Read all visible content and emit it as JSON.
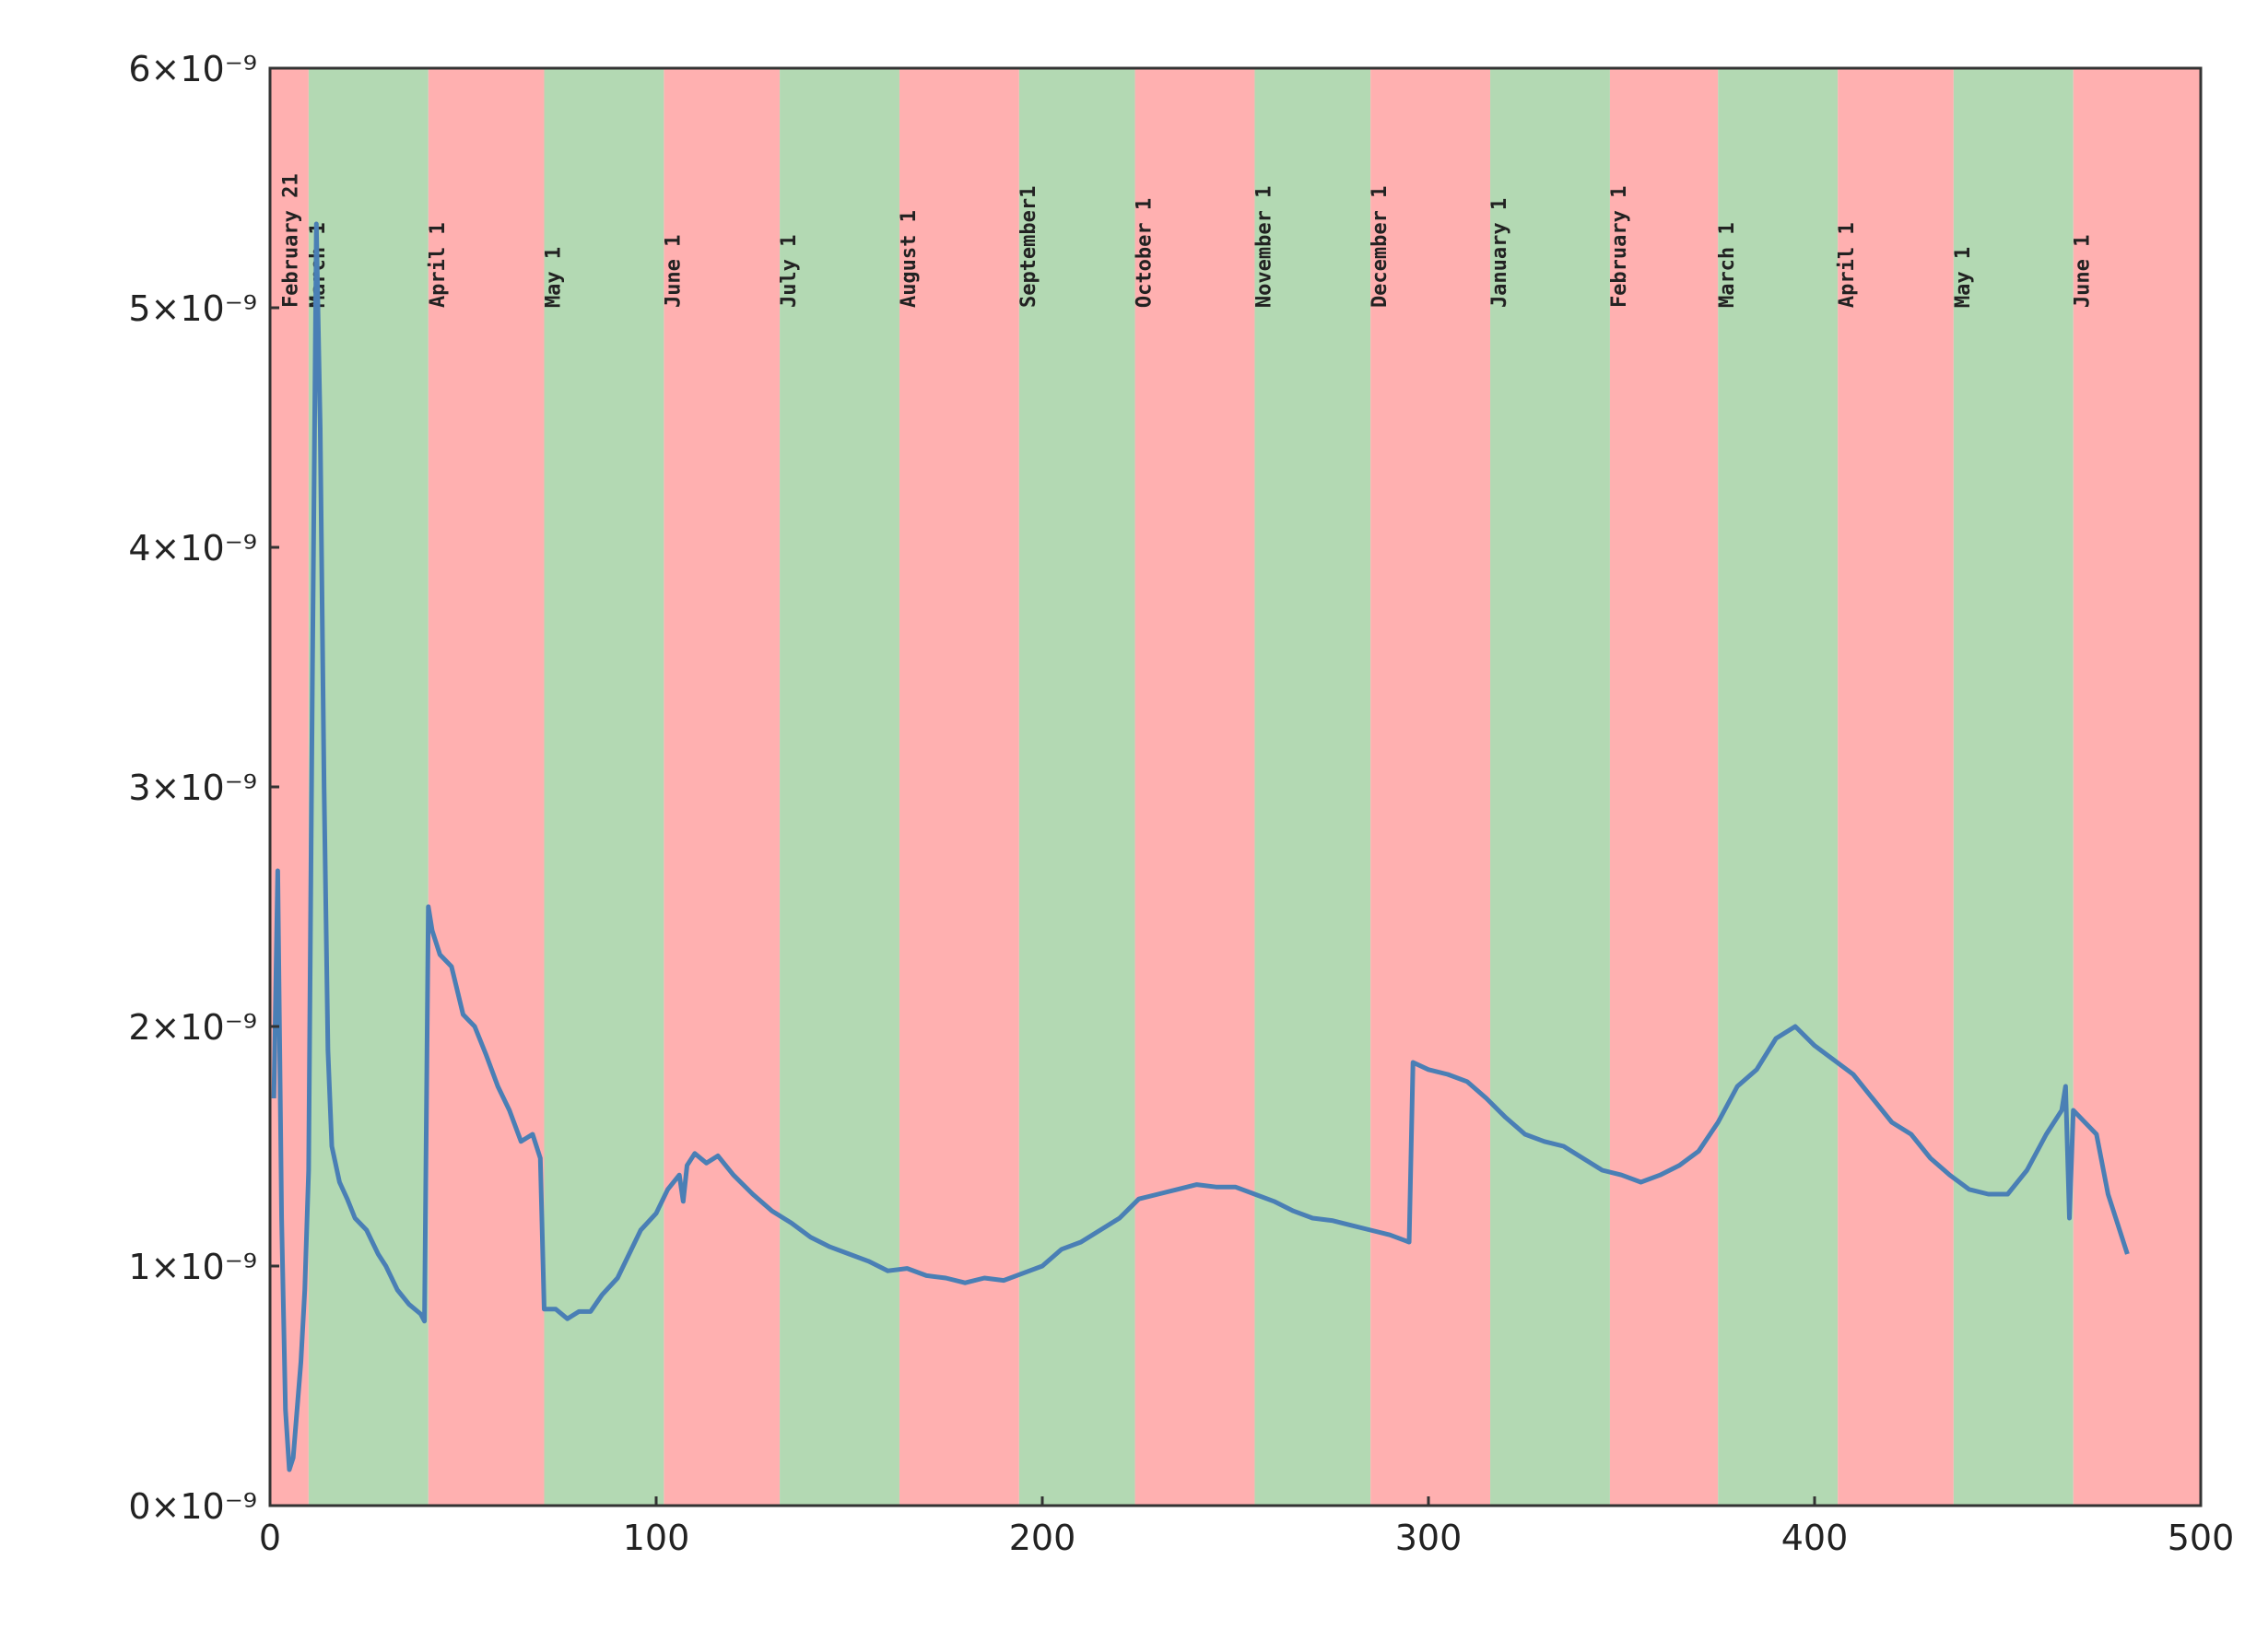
{
  "chart_data": {
    "type": "line",
    "xlim": [
      0,
      500
    ],
    "xticks": [
      0,
      100,
      200,
      300,
      400,
      500
    ],
    "ylim": [
      0,
      6e-09
    ],
    "yticks": [
      {
        "value": 0,
        "label": "0×10⁻⁹"
      },
      {
        "value": 1e-09,
        "label": "1×10⁻⁹"
      },
      {
        "value": 2e-09,
        "label": "2×10⁻⁹"
      },
      {
        "value": 3e-09,
        "label": "3×10⁻⁹"
      },
      {
        "value": 4e-09,
        "label": "4×10⁻⁹"
      },
      {
        "value": 5e-09,
        "label": "5×10⁻⁹"
      },
      {
        "value": 6e-09,
        "label": "6×10⁻⁹"
      }
    ],
    "spans": [
      {
        "start": 0,
        "end": 10,
        "color": "#ffb0b0"
      },
      {
        "start": 10,
        "end": 41,
        "color": "#b3d9b3"
      },
      {
        "start": 41,
        "end": 71,
        "color": "#ffb0b0"
      },
      {
        "start": 71,
        "end": 102,
        "color": "#b3d9b3"
      },
      {
        "start": 102,
        "end": 132,
        "color": "#ffb0b0"
      },
      {
        "start": 132,
        "end": 163,
        "color": "#b3d9b3"
      },
      {
        "start": 163,
        "end": 194,
        "color": "#ffb0b0"
      },
      {
        "start": 194,
        "end": 224,
        "color": "#b3d9b3"
      },
      {
        "start": 224,
        "end": 255,
        "color": "#ffb0b0"
      },
      {
        "start": 255,
        "end": 285,
        "color": "#b3d9b3"
      },
      {
        "start": 285,
        "end": 316,
        "color": "#ffb0b0"
      },
      {
        "start": 316,
        "end": 347,
        "color": "#b3d9b3"
      },
      {
        "start": 347,
        "end": 375,
        "color": "#ffb0b0"
      },
      {
        "start": 375,
        "end": 406,
        "color": "#b3d9b3"
      },
      {
        "start": 406,
        "end": 436,
        "color": "#ffb0b0"
      },
      {
        "start": 436,
        "end": 467,
        "color": "#b3d9b3"
      },
      {
        "start": 467,
        "end": 500,
        "color": "#ffb0b0"
      }
    ],
    "annotations": [
      {
        "x": 3,
        "text": "February 21"
      },
      {
        "x": 10,
        "text": "March 1"
      },
      {
        "x": 41,
        "text": "April 1"
      },
      {
        "x": 71,
        "text": "May 1"
      },
      {
        "x": 102,
        "text": "June 1"
      },
      {
        "x": 132,
        "text": "July 1"
      },
      {
        "x": 163,
        "text": "August 1"
      },
      {
        "x": 194,
        "text": "September1"
      },
      {
        "x": 224,
        "text": "October 1"
      },
      {
        "x": 255,
        "text": "November 1"
      },
      {
        "x": 285,
        "text": "December 1"
      },
      {
        "x": 316,
        "text": "January 1"
      },
      {
        "x": 347,
        "text": "February 1"
      },
      {
        "x": 375,
        "text": "March 1"
      },
      {
        "x": 406,
        "text": "April 1"
      },
      {
        "x": 436,
        "text": "May 1"
      },
      {
        "x": 467,
        "text": "June 1"
      }
    ],
    "series": [
      {
        "color": "#4a7fb5",
        "x": [
          1,
          2,
          3,
          4,
          5,
          6,
          7,
          8,
          9,
          10,
          11,
          12,
          13,
          14,
          15,
          16,
          18,
          20,
          22,
          25,
          28,
          30,
          33,
          36,
          39,
          40,
          41,
          42,
          44,
          47,
          50,
          53,
          56,
          59,
          62,
          65,
          68,
          70,
          71,
          74,
          77,
          80,
          83,
          86,
          90,
          93,
          96,
          100,
          103,
          106,
          107,
          108,
          110,
          113,
          116,
          120,
          125,
          130,
          135,
          140,
          145,
          150,
          155,
          160,
          165,
          170,
          175,
          180,
          185,
          190,
          195,
          200,
          205,
          210,
          215,
          220,
          225,
          230,
          235,
          240,
          245,
          250,
          255,
          260,
          265,
          270,
          275,
          280,
          285,
          290,
          295,
          296,
          300,
          305,
          310,
          315,
          320,
          325,
          330,
          335,
          340,
          345,
          350,
          355,
          360,
          365,
          370,
          375,
          380,
          385,
          390,
          395,
          400,
          405,
          410,
          415,
          420,
          425,
          430,
          435,
          440,
          445,
          450,
          455,
          460,
          464,
          465,
          466,
          467,
          470,
          473,
          476,
          478,
          481
        ],
        "values": [
          1.7e-09,
          2.65e-09,
          1.2e-09,
          4e-10,
          1.5e-10,
          2e-10,
          4e-10,
          6e-10,
          9e-10,
          1.4e-09,
          3.5e-09,
          5.35e-09,
          4.5e-09,
          3e-09,
          1.9e-09,
          1.5e-09,
          1.35e-09,
          1.28e-09,
          1.2e-09,
          1.15e-09,
          1.05e-09,
          1e-09,
          9e-10,
          8.4e-10,
          8e-10,
          7.7e-10,
          2.5e-09,
          2.4e-09,
          2.3e-09,
          2.25e-09,
          2.05e-09,
          2e-09,
          1.88e-09,
          1.75e-09,
          1.65e-09,
          1.52e-09,
          1.55e-09,
          1.45e-09,
          8.2e-10,
          8.2e-10,
          7.8e-10,
          8.1e-10,
          8.1e-10,
          8.8e-10,
          9.5e-10,
          1.05e-09,
          1.15e-09,
          1.22e-09,
          1.32e-09,
          1.38e-09,
          1.27e-09,
          1.42e-09,
          1.47e-09,
          1.43e-09,
          1.46e-09,
          1.38e-09,
          1.3e-09,
          1.23e-09,
          1.18e-09,
          1.12e-09,
          1.08e-09,
          1.05e-09,
          1.02e-09,
          9.8e-10,
          9.9e-10,
          9.6e-10,
          9.5e-10,
          9.3e-10,
          9.5e-10,
          9.4e-10,
          9.7e-10,
          1e-09,
          1.07e-09,
          1.1e-09,
          1.15e-09,
          1.2e-09,
          1.28e-09,
          1.3e-09,
          1.32e-09,
          1.34e-09,
          1.33e-09,
          1.33e-09,
          1.3e-09,
          1.27e-09,
          1.23e-09,
          1.2e-09,
          1.19e-09,
          1.17e-09,
          1.15e-09,
          1.13e-09,
          1.1e-09,
          1.85e-09,
          1.82e-09,
          1.8e-09,
          1.77e-09,
          1.7e-09,
          1.62e-09,
          1.55e-09,
          1.52e-09,
          1.5e-09,
          1.45e-09,
          1.4e-09,
          1.38e-09,
          1.35e-09,
          1.38e-09,
          1.42e-09,
          1.48e-09,
          1.6e-09,
          1.75e-09,
          1.82e-09,
          1.95e-09,
          2e-09,
          1.92e-09,
          1.86e-09,
          1.8e-09,
          1.7e-09,
          1.6e-09,
          1.55e-09,
          1.45e-09,
          1.38e-09,
          1.32e-09,
          1.3e-09,
          1.3e-09,
          1.4e-09,
          1.55e-09,
          1.65e-09,
          1.75e-09,
          1.2e-09,
          1.65e-09,
          1.6e-09,
          1.55e-09,
          1.3e-09,
          1.2e-09,
          1.05e-09
        ]
      }
    ]
  }
}
